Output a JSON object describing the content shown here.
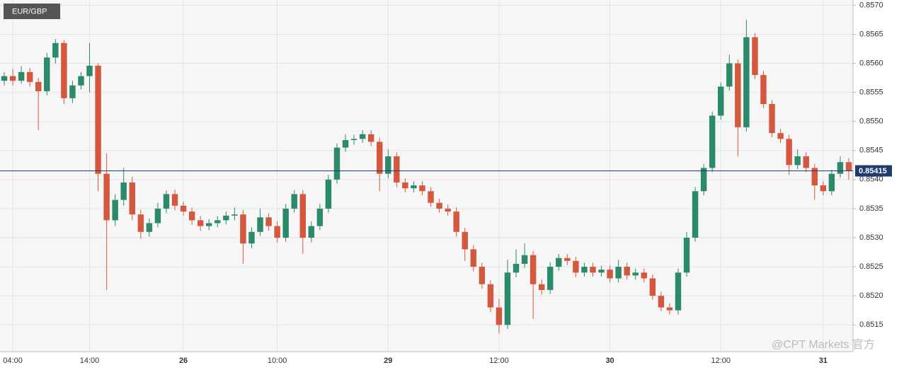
{
  "chart_data": {
    "type": "candlestick",
    "title": "EUR/GBP",
    "categories": [
      null,
      "04:00",
      null,
      null,
      null,
      null,
      null,
      null,
      null,
      null,
      "14:00",
      null,
      null,
      null,
      null,
      null,
      null,
      null,
      null,
      null,
      null,
      "26",
      null,
      null,
      null,
      null,
      null,
      null,
      null,
      null,
      null,
      null,
      "10:00",
      null,
      null,
      null,
      null,
      null,
      null,
      null,
      null,
      null,
      null,
      null,
      null,
      "29",
      null,
      null,
      null,
      null,
      null,
      null,
      null,
      null,
      null,
      null,
      null,
      null,
      "12:00",
      null,
      null,
      null,
      null,
      null,
      null,
      null,
      null,
      null,
      null,
      null,
      null,
      "30",
      null,
      null,
      null,
      null,
      null,
      null,
      null,
      null,
      null,
      null,
      null,
      null,
      "12:00",
      null,
      null,
      null,
      null,
      null,
      null,
      null,
      null,
      null,
      null,
      null,
      "31",
      null,
      null,
      null
    ],
    "open": [
      0.8557,
      0.85578,
      0.8557,
      0.85585,
      0.85568,
      0.85552,
      0.8561,
      0.85635,
      0.8554,
      0.85562,
      0.85578,
      0.85596,
      0.8541,
      0.8533,
      0.85365,
      0.85395,
      0.8534,
      0.8531,
      0.85325,
      0.8535,
      0.85375,
      0.85355,
      0.85345,
      0.8533,
      0.8532,
      0.85325,
      0.8533,
      0.85338,
      0.8534,
      0.8529,
      0.8531,
      0.85335,
      0.8532,
      0.853,
      0.8535,
      0.85375,
      0.853,
      0.8532,
      0.8535,
      0.854,
      0.85455,
      0.85468,
      0.8547,
      0.85478,
      0.85465,
      0.8541,
      0.8544,
      0.85395,
      0.85385,
      0.8539,
      0.8538,
      0.8536,
      0.8535,
      0.85345,
      0.8531,
      0.8528,
      0.8525,
      0.8522,
      0.8518,
      0.8515,
      0.8524,
      0.85255,
      0.8527,
      0.8522,
      0.8521,
      0.8525,
      0.85265,
      0.8526,
      0.8524,
      0.8525,
      0.8524,
      0.85245,
      0.8523,
      0.8525,
      0.85235,
      0.8524,
      0.8523,
      0.852,
      0.8518,
      0.85175,
      0.8524,
      0.853,
      0.8538,
      0.8542,
      0.8551,
      0.8556,
      0.856,
      0.8549,
      0.85645,
      0.8558,
      0.8553,
      0.8548,
      0.8547,
      0.85425,
      0.8544,
      0.8542,
      0.8539,
      0.8538,
      0.8541,
      0.8543
    ],
    "high": [
      0.85585,
      0.8559,
      0.85595,
      0.85592,
      0.85575,
      0.85618,
      0.85642,
      0.8564,
      0.8557,
      0.85585,
      0.85635,
      0.856,
      0.85445,
      0.85375,
      0.8542,
      0.85405,
      0.85348,
      0.85333,
      0.8536,
      0.85382,
      0.85383,
      0.85362,
      0.85352,
      0.85337,
      0.85332,
      0.85337,
      0.85345,
      0.85352,
      0.85348,
      0.85318,
      0.8535,
      0.85342,
      0.85328,
      0.85358,
      0.85382,
      0.85382,
      0.85328,
      0.85358,
      0.85408,
      0.85462,
      0.85478,
      0.85477,
      0.85485,
      0.85485,
      0.85472,
      0.85452,
      0.85447,
      0.85402,
      0.85397,
      0.85397,
      0.85387,
      0.85367,
      0.85357,
      0.85352,
      0.85317,
      0.85287,
      0.85257,
      0.85227,
      0.85195,
      0.85262,
      0.8528,
      0.8529,
      0.85277,
      0.85228,
      0.85258,
      0.85272,
      0.85272,
      0.85267,
      0.85257,
      0.85257,
      0.85252,
      0.85252,
      0.85262,
      0.85257,
      0.85247,
      0.85247,
      0.85237,
      0.85207,
      0.85187,
      0.85247,
      0.8531,
      0.85387,
      0.85427,
      0.85517,
      0.85567,
      0.85615,
      0.85607,
      0.85675,
      0.85652,
      0.85587,
      0.85537,
      0.85487,
      0.85477,
      0.85452,
      0.85447,
      0.85427,
      0.85397,
      0.85417,
      0.8544,
      0.85437
    ],
    "low": [
      0.85562,
      0.85562,
      0.85565,
      0.8556,
      0.85485,
      0.85545,
      0.856,
      0.8553,
      0.85532,
      0.85555,
      0.8555,
      0.8538,
      0.8521,
      0.8532,
      0.85355,
      0.8533,
      0.85298,
      0.85302,
      0.85318,
      0.85342,
      0.85347,
      0.85338,
      0.85322,
      0.85312,
      0.85313,
      0.85318,
      0.85323,
      0.8533,
      0.85255,
      0.85282,
      0.85303,
      0.85312,
      0.85292,
      0.85293,
      0.85343,
      0.85272,
      0.85292,
      0.85313,
      0.85343,
      0.85393,
      0.85448,
      0.8546,
      0.85463,
      0.85458,
      0.8538,
      0.85402,
      0.85387,
      0.85378,
      0.85378,
      0.85373,
      0.85353,
      0.85343,
      0.85338,
      0.85302,
      0.8526,
      0.85242,
      0.85212,
      0.85172,
      0.85135,
      0.85143,
      0.85232,
      0.85248,
      0.8516,
      0.85202,
      0.85203,
      0.85243,
      0.85253,
      0.85232,
      0.85233,
      0.85233,
      0.85233,
      0.85223,
      0.85223,
      0.85228,
      0.85228,
      0.85223,
      0.85193,
      0.85173,
      0.85168,
      0.85168,
      0.85233,
      0.85293,
      0.85373,
      0.85413,
      0.85503,
      0.85553,
      0.8544,
      0.85483,
      0.85573,
      0.85523,
      0.85473,
      0.85463,
      0.85408,
      0.85418,
      0.85413,
      0.85365,
      0.85373,
      0.85373,
      0.85403,
      0.854
    ],
    "close": [
      0.85578,
      0.8557,
      0.85585,
      0.85568,
      0.85552,
      0.8561,
      0.85635,
      0.8554,
      0.85562,
      0.85578,
      0.85596,
      0.8541,
      0.8533,
      0.85365,
      0.85395,
      0.8534,
      0.8531,
      0.85325,
      0.8535,
      0.85375,
      0.85355,
      0.85345,
      0.8533,
      0.8532,
      0.85325,
      0.8533,
      0.85338,
      0.8534,
      0.8529,
      0.8531,
      0.85335,
      0.8532,
      0.853,
      0.8535,
      0.85375,
      0.853,
      0.8532,
      0.8535,
      0.854,
      0.85455,
      0.85468,
      0.8547,
      0.85478,
      0.85465,
      0.8541,
      0.8544,
      0.85395,
      0.85385,
      0.8539,
      0.8538,
      0.8536,
      0.8535,
      0.85345,
      0.8531,
      0.8528,
      0.8525,
      0.8522,
      0.8518,
      0.8515,
      0.8524,
      0.85255,
      0.8527,
      0.8522,
      0.8521,
      0.8525,
      0.85265,
      0.8526,
      0.8524,
      0.8525,
      0.8524,
      0.85245,
      0.8523,
      0.8525,
      0.85235,
      0.8524,
      0.8523,
      0.852,
      0.8518,
      0.85175,
      0.8524,
      0.853,
      0.8538,
      0.8542,
      0.8551,
      0.8556,
      0.856,
      0.8549,
      0.85645,
      0.8558,
      0.8553,
      0.8548,
      0.8547,
      0.85425,
      0.8544,
      0.8542,
      0.8539,
      0.8538,
      0.8541,
      0.8543,
      0.85415
    ],
    "up_color": "#2a8a6a",
    "down_color": "#d4583e",
    "ylim": [
      0.85104,
      0.85709
    ],
    "yticks": [
      0.8515,
      {
        "value": 0.852,
        "label": "0.8520"
      },
      0.8525,
      {
        "value": 0.853,
        "label": "0.8530"
      },
      0.8535,
      {
        "value": 0.854,
        "label": "0.8540"
      },
      0.8545,
      {
        "value": 0.855,
        "label": "0.8550"
      },
      0.8555,
      {
        "value": 0.856,
        "label": "0.8560"
      },
      0.8565,
      {
        "value": 0.857,
        "label": "0.8570"
      }
    ],
    "last_price": 0.85415,
    "last_price_color": "#1d3b6f",
    "grid": true,
    "watermark": "@CPT Markets 官方"
  }
}
